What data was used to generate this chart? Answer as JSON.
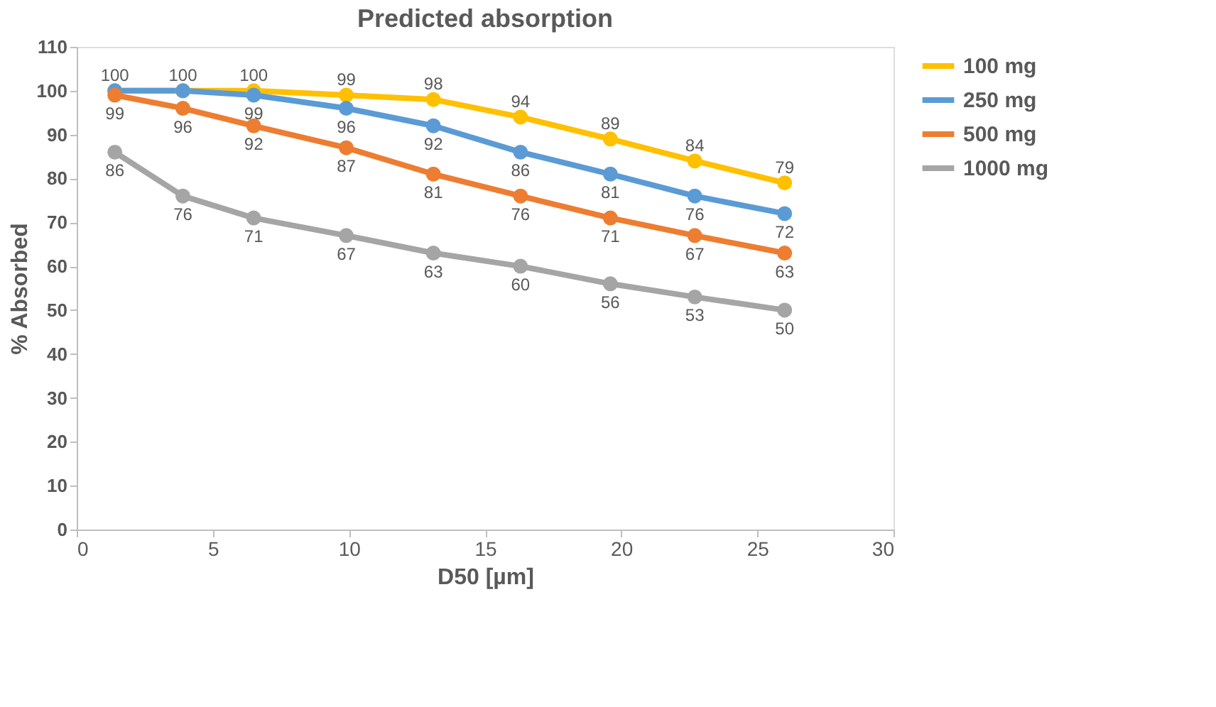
{
  "chart_data": {
    "type": "line",
    "title": "Predicted absorption",
    "xlabel": "D50 [µm]",
    "ylabel": "% Absorbed",
    "x": [
      1.4,
      3.9,
      6.5,
      9.9,
      13.1,
      16.3,
      19.6,
      22.7,
      26.0
    ],
    "series": [
      {
        "name": "100 mg",
        "color": "#ffc000",
        "values": [
          100,
          100,
          100,
          99,
          98,
          94,
          89,
          84,
          79
        ]
      },
      {
        "name": "250 mg",
        "color": "#5b9bd5",
        "values": [
          100,
          100,
          99,
          96,
          92,
          86,
          81,
          76,
          72
        ],
        "value_labels": [
          null,
          null,
          "99",
          "96",
          "92",
          "86",
          "81",
          "76",
          "72"
        ]
      },
      {
        "name": "500 mg",
        "color": "#ed7d31",
        "values": [
          99,
          96,
          92,
          87,
          81,
          76,
          71,
          67,
          63
        ]
      },
      {
        "name": "1000 mg",
        "color": "#a5a5a5",
        "values": [
          86,
          76,
          71,
          67,
          63,
          60,
          56,
          53,
          50
        ]
      }
    ],
    "xlim": [
      0,
      30
    ],
    "xticks": [
      0,
      5,
      10,
      15,
      20,
      25,
      30
    ],
    "ylim": [
      0,
      110
    ],
    "yticks": [
      0,
      10,
      20,
      30,
      40,
      50,
      60,
      70,
      80,
      90,
      100,
      110
    ],
    "grid": false,
    "legend": "right",
    "marker": "circle",
    "line_style": "solid",
    "data_labels": true
  }
}
